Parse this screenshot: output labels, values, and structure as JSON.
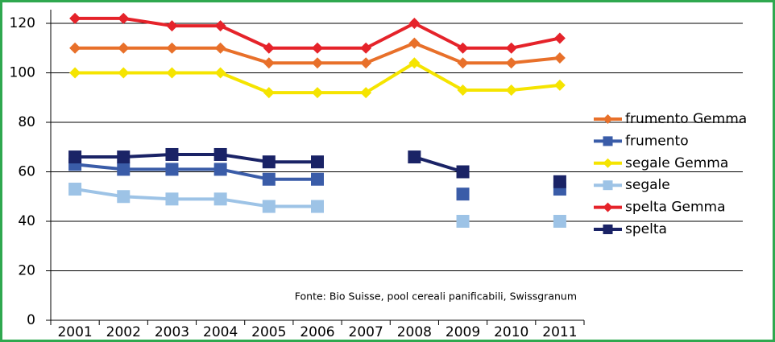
{
  "chart_data": {
    "type": "line",
    "categories": [
      "2001",
      "2002",
      "2003",
      "2004",
      "2005",
      "2006",
      "2007",
      "2008",
      "2009",
      "2010",
      "2011"
    ],
    "series": [
      {
        "name": "frumento Gemma",
        "color": "#e8702a",
        "marker": "diamond",
        "values": [
          110,
          110,
          110,
          110,
          104,
          104,
          104,
          112,
          104,
          104,
          106
        ]
      },
      {
        "name": "frumento",
        "color": "#3a5ca8",
        "marker": "square",
        "values": [
          63,
          61,
          61,
          61,
          57,
          57,
          null,
          null,
          51,
          null,
          53
        ]
      },
      {
        "name": "segale Gemma",
        "color": "#f5e400",
        "marker": "diamond",
        "values": [
          100,
          100,
          100,
          100,
          92,
          92,
          92,
          104,
          93,
          93,
          95
        ]
      },
      {
        "name": "segale",
        "color": "#9dc3e6",
        "marker": "square",
        "values": [
          53,
          50,
          49,
          49,
          46,
          46,
          null,
          null,
          40,
          null,
          40
        ]
      },
      {
        "name": "spelta Gemma",
        "color": "#e5232a",
        "marker": "diamond",
        "values": [
          122,
          122,
          119,
          119,
          110,
          110,
          110,
          120,
          110,
          110,
          114
        ]
      },
      {
        "name": "spelta",
        "color": "#1a2366",
        "marker": "square",
        "values": [
          66,
          66,
          67,
          67,
          64,
          64,
          null,
          66,
          60,
          null,
          56
        ]
      }
    ],
    "ylim": [
      0,
      120
    ],
    "yticks": [
      0,
      20,
      40,
      60,
      80,
      100,
      120
    ],
    "grid": true,
    "legend": "right",
    "annotation": "Fonte: Bio Suisse, pool cereali panificabili, Swissgranum"
  }
}
